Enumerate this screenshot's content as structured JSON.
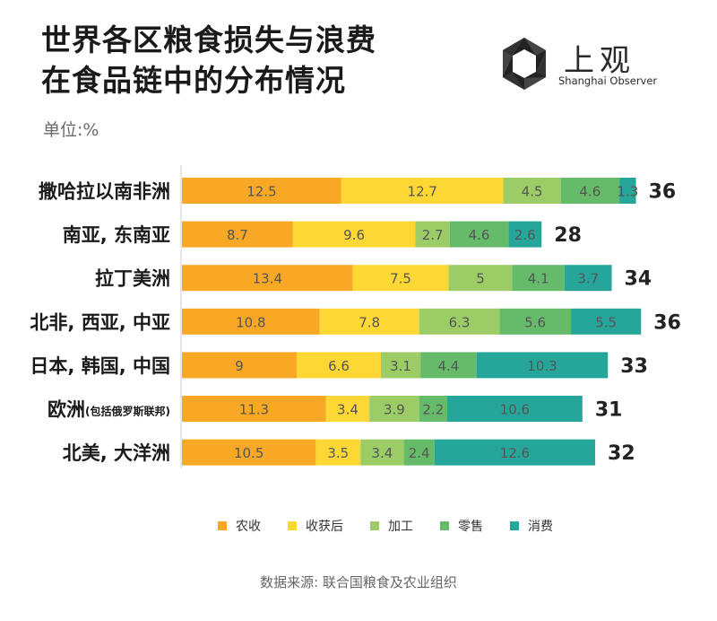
{
  "title_line1": "世界各区粮食损失与浪费",
  "title_line2": "在食品链中的分布情况",
  "unit": "单位:%",
  "logo": {
    "cn": "上观",
    "en": "Shanghai Observer"
  },
  "source": "数据来源: 联合国粮食及农业组织",
  "colors": {
    "农收": "#F9A825",
    "收获后": "#FDD835",
    "加工": "#9CCC65",
    "零售": "#66BB6A",
    "消费": "#26A69A"
  },
  "chart_data": {
    "type": "bar",
    "orientation": "horizontal",
    "stacked": true,
    "categories": [
      {
        "label": "撒哈拉以南非洲",
        "note": ""
      },
      {
        "label": "南亚, 东南亚",
        "note": ""
      },
      {
        "label": "拉丁美洲",
        "note": ""
      },
      {
        "label": "北非, 西亚, 中亚",
        "note": ""
      },
      {
        "label": "日本, 韩国, 中国",
        "note": ""
      },
      {
        "label": "欧洲",
        "note": "(包括俄罗斯联邦)"
      },
      {
        "label": "北美, 大洋洲",
        "note": ""
      }
    ],
    "series": [
      {
        "name": "农收",
        "values": [
          12.5,
          8.7,
          13.4,
          10.8,
          9,
          11.3,
          10.5
        ]
      },
      {
        "name": "收获后",
        "values": [
          12.7,
          9.6,
          7.5,
          7.8,
          6.6,
          3.4,
          3.5
        ]
      },
      {
        "name": "加工",
        "values": [
          4.5,
          2.7,
          5,
          6.3,
          3.1,
          3.9,
          3.4
        ]
      },
      {
        "name": "零售",
        "values": [
          4.6,
          4.6,
          4.1,
          5.6,
          4.4,
          2.2,
          2.4
        ]
      },
      {
        "name": "消费",
        "values": [
          1.3,
          2.6,
          3.7,
          5.5,
          10.3,
          10.6,
          12.6
        ]
      }
    ],
    "totals": [
      "36",
      "28",
      "34",
      "36",
      "33",
      "31",
      "32"
    ],
    "legend_position": "bottom",
    "grid": false
  }
}
